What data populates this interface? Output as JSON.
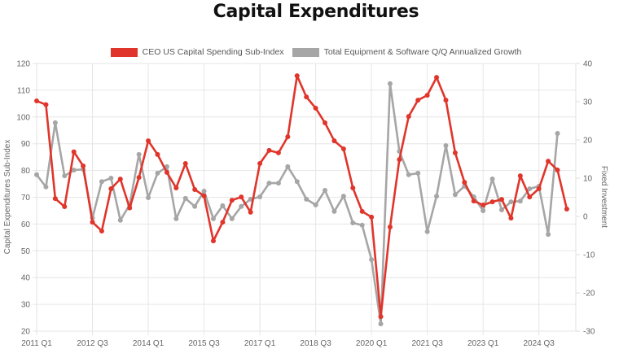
{
  "title": "Capital Expenditures",
  "legend": {
    "items": [
      {
        "label": "CEO US Capital Spending Sub-Index",
        "color": "#e0352b"
      },
      {
        "label": "Total Equipment & Software Q/Q Annualized Growth",
        "color": "#a6a6a6"
      }
    ]
  },
  "chart_data": {
    "type": "line",
    "title": "Capital Expenditures",
    "xlabel": "",
    "ylabel": "Capital Expenditures Sub-Index",
    "y2label": "Fixed Investment",
    "ylim": [
      20,
      120
    ],
    "y2lim": [
      -30,
      40
    ],
    "y_ticks": [
      "120",
      "110",
      "100",
      "90",
      "80",
      "70",
      "60",
      "50",
      "40",
      "30",
      "20"
    ],
    "y2_ticks": [
      "40",
      "30",
      "20",
      "10",
      "0",
      "-10",
      "-20",
      "-30"
    ],
    "x_tick_labels": [
      "2011 Q1",
      "2012 Q3",
      "2014 Q1",
      "2015 Q3",
      "2017 Q1",
      "2018 Q3",
      "2020 Q1",
      "2021 Q3",
      "2023 Q1",
      "2024 Q3"
    ],
    "grid": true,
    "legend_position": "top-center",
    "categories": [
      "2011 Q1",
      "2011 Q2",
      "2011 Q3",
      "2011 Q4",
      "2012 Q1",
      "2012 Q2",
      "2012 Q3",
      "2012 Q4",
      "2013 Q1",
      "2013 Q2",
      "2013 Q3",
      "2013 Q4",
      "2014 Q1",
      "2014 Q2",
      "2014 Q3",
      "2014 Q4",
      "2015 Q1",
      "2015 Q2",
      "2015 Q3",
      "2015 Q4",
      "2016 Q1",
      "2016 Q2",
      "2016 Q3",
      "2016 Q4",
      "2017 Q1",
      "2017 Q2",
      "2017 Q3",
      "2017 Q4",
      "2018 Q1",
      "2018 Q2",
      "2018 Q3",
      "2018 Q4",
      "2019 Q1",
      "2019 Q2",
      "2019 Q3",
      "2019 Q4",
      "2020 Q1",
      "2020 Q2",
      "2020 Q3",
      "2020 Q4",
      "2021 Q1",
      "2021 Q2",
      "2021 Q3",
      "2021 Q4",
      "2022 Q1",
      "2022 Q2",
      "2022 Q3",
      "2022 Q4",
      "2023 Q1",
      "2023 Q2",
      "2023 Q3",
      "2023 Q4",
      "2024 Q1",
      "2024 Q2",
      "2024 Q3",
      "2024 Q4",
      "2025 Q1",
      "2025 Q2"
    ],
    "series": [
      {
        "name": "CEO US Capital Spending Sub-Index",
        "axis": "left",
        "color": "#e0352b",
        "values": [
          106,
          104.6,
          69.5,
          66.5,
          87,
          81.7,
          60.7,
          57.4,
          73.2,
          76.8,
          66,
          77.4,
          91.1,
          86,
          79.3,
          73.5,
          82.6,
          72.9,
          70.5,
          53.7,
          60.7,
          68.9,
          70.1,
          64.4,
          82.6,
          87.5,
          86.6,
          92.6,
          115.4,
          107.5,
          103.3,
          97.8,
          91.1,
          88.1,
          73.5,
          64.7,
          62.6,
          25.4,
          58.9,
          84.1,
          100.2,
          106.3,
          108.1,
          114.8,
          106.3,
          86.6,
          75.6,
          68.6,
          67.1,
          68.3,
          69.2,
          62.2,
          78,
          70.1,
          73.2,
          83.5,
          80.2,
          65.6
        ]
      },
      {
        "name": "Total Equipment & Software Q/Q Annualized Growth",
        "axis": "right",
        "color": "#a6a6a6",
        "values": [
          10.9,
          7.7,
          24.5,
          10.6,
          12.1,
          12.3,
          -0.4,
          9.1,
          10,
          -1,
          3,
          16.2,
          4.9,
          11.3,
          13,
          -0.6,
          4.7,
          2.6,
          6.6,
          -0.6,
          2.8,
          -0.6,
          2.6,
          4.5,
          5.1,
          8.7,
          8.7,
          13,
          9.1,
          4.5,
          3,
          6.8,
          1.3,
          5.3,
          -1.7,
          -2.3,
          -11.3,
          -28.1,
          34.7,
          17,
          10.9,
          11.3,
          -4,
          5.3,
          18.5,
          5.7,
          7.9,
          5.1,
          1.5,
          9.8,
          1.7,
          3.8,
          4,
          7.2,
          7.9,
          -4.7,
          21.7,
          null
        ]
      }
    ]
  }
}
